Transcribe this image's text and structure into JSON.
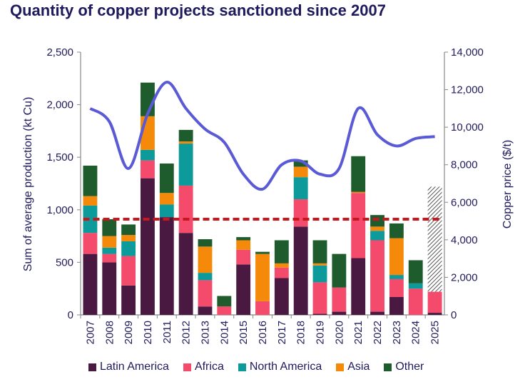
{
  "chart_data": {
    "type": "bar",
    "stacked": true,
    "title": "Quantity of copper projects sanctioned since 2007",
    "ylabel": "Sum of average production (kt Cu)",
    "y2label": "Copper price ($/t)",
    "ylim": [
      0,
      2500
    ],
    "y2lim": [
      0,
      14000
    ],
    "yticks": [
      "0",
      "500",
      "1,000",
      "1,500",
      "2,000",
      "2,500"
    ],
    "y2ticks": [
      "0",
      "2,000",
      "4,000",
      "6,000",
      "8,000",
      "10,000",
      "12,000",
      "14,000"
    ],
    "categories": [
      "2007",
      "2008",
      "2009",
      "2010",
      "2011",
      "2012",
      "2013",
      "2014",
      "2015",
      "2016",
      "2017",
      "2018",
      "2019",
      "2020",
      "2021",
      "2022",
      "2023",
      "2024",
      "2025"
    ],
    "series": [
      {
        "name": "Latin America",
        "color": "#4a1942",
        "values": [
          580,
          500,
          280,
          1300,
          930,
          780,
          80,
          0,
          480,
          0,
          350,
          840,
          10,
          30,
          540,
          30,
          170,
          0,
          20
        ]
      },
      {
        "name": "Africa",
        "color": "#f44a6b",
        "values": [
          200,
          80,
          280,
          170,
          0,
          450,
          250,
          80,
          140,
          130,
          100,
          260,
          300,
          230,
          620,
          680,
          170,
          250,
          200
        ]
      },
      {
        "name": "North America",
        "color": "#0d9a9a",
        "values": [
          260,
          60,
          140,
          100,
          120,
          400,
          70,
          0,
          0,
          0,
          0,
          210,
          160,
          0,
          0,
          90,
          40,
          50,
          0
        ]
      },
      {
        "name": "Asia",
        "color": "#f58a0a",
        "values": [
          90,
          110,
          60,
          320,
          110,
          20,
          250,
          0,
          90,
          450,
          40,
          100,
          20,
          0,
          10,
          40,
          350,
          0,
          0
        ]
      },
      {
        "name": "Other",
        "color": "#1e5c2e",
        "values": [
          290,
          160,
          100,
          320,
          280,
          110,
          70,
          100,
          30,
          20,
          220,
          60,
          220,
          320,
          340,
          110,
          140,
          220,
          0
        ]
      }
    ],
    "planned_2025": {
      "base": 220,
      "top": 1220,
      "pattern": "hatched"
    },
    "reference_line": {
      "value": 5100,
      "axis": "right",
      "color": "#c8161d",
      "style": "dashed"
    },
    "copper_price": {
      "axis": "right",
      "color": "#5a5ad6",
      "x": [
        2007,
        2008,
        2009,
        2010,
        2011,
        2012,
        2013,
        2014,
        2015,
        2016,
        2017,
        2018,
        2019,
        2020,
        2021,
        2022,
        2023,
        2024,
        2025
      ],
      "y": [
        11000,
        10300,
        7800,
        10700,
        12400,
        11000,
        9900,
        9200,
        7500,
        6700,
        8000,
        8200,
        7500,
        7800,
        11000,
        9600,
        9000,
        9400,
        9500
      ]
    },
    "legend_position": "bottom",
    "grid": false
  }
}
